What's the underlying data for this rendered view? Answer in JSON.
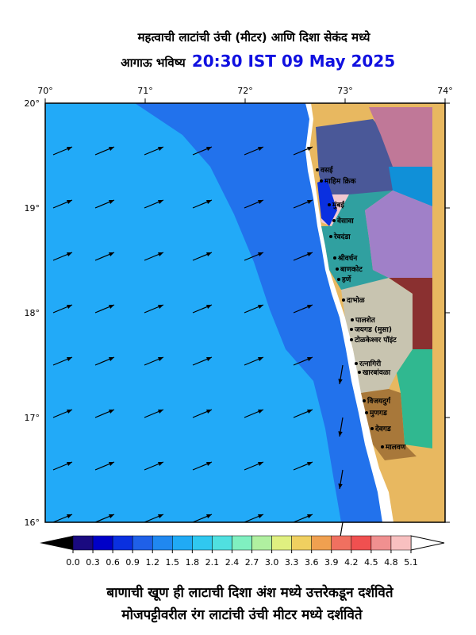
{
  "header": {
    "line1": "महत्वाची लाटांची उंची (मीटर) आणि दिशा सेकंद मध्ये",
    "line2": "आगाऊ भविष्य",
    "time": "20:30 IST 09 May 2025"
  },
  "map": {
    "lon_labels": [
      "70°",
      "71°",
      "72°",
      "73°",
      "74°"
    ],
    "lat_labels": [
      "20°",
      "19°",
      "18°",
      "17°",
      "16°"
    ],
    "places": [
      "वसई",
      "माहिम क्रिक",
      "मुंबई",
      "वेसावा",
      "रेवदंडा",
      "श्रीवर्धन",
      "बाणकोट",
      "हर्णे",
      "दाभोळ",
      "पालशेत",
      "जयगड (मुसा)",
      "टोळकेश्वर पॉइंट",
      "रत्नागिरी",
      "खारबांवळा",
      "विजयदुर्ग",
      "मुणगड",
      "देवगड",
      "मालवण"
    ]
  },
  "colorbar": {
    "ticks": [
      {
        "value": 0,
        "label": "0.0"
      },
      {
        "value": 0.3,
        "label": "0.3"
      },
      {
        "value": 0.6,
        "label": "0.6"
      },
      {
        "value": 0.9,
        "label": "0.9"
      },
      {
        "value": 1.2,
        "label": "1.2"
      },
      {
        "value": 1.5,
        "label": "1.5"
      },
      {
        "value": 1.8,
        "label": "1.8"
      },
      {
        "value": 2.1,
        "label": "2.1"
      },
      {
        "value": 2.4,
        "label": "2.4"
      },
      {
        "value": 2.7,
        "label": "2.7"
      },
      {
        "value": 3,
        "label": "3.0"
      },
      {
        "value": 3.3,
        "label": "3.3"
      },
      {
        "value": 3.6,
        "label": "3.6"
      },
      {
        "value": 3.9,
        "label": "3.9"
      },
      {
        "value": 4.2,
        "label": "4.2"
      },
      {
        "value": 4.5,
        "label": "4.5"
      },
      {
        "value": 4.8,
        "label": "4.8"
      },
      {
        "value": 5.1,
        "label": "5.1"
      }
    ],
    "colors": [
      "#1a0a80",
      "#0000c8",
      "#0a30e0",
      "#1f60e8",
      "#2088f0",
      "#20aaf5",
      "#30c8f0",
      "#50e0e0",
      "#80f0c0",
      "#b0f0a0",
      "#e0f080",
      "#f0d060",
      "#f0a050",
      "#f07060",
      "#f05050",
      "#f09090",
      "#f8c0c0"
    ]
  },
  "footer": {
    "line1": "बाणाची खूण ही लाटाची दिशा अंश मध्ये उत्तरेकडून दर्शविते",
    "line2": "मोजपट्टीवरील रंग लाटांची उंची मीटर मध्ये दर्शविते"
  }
}
